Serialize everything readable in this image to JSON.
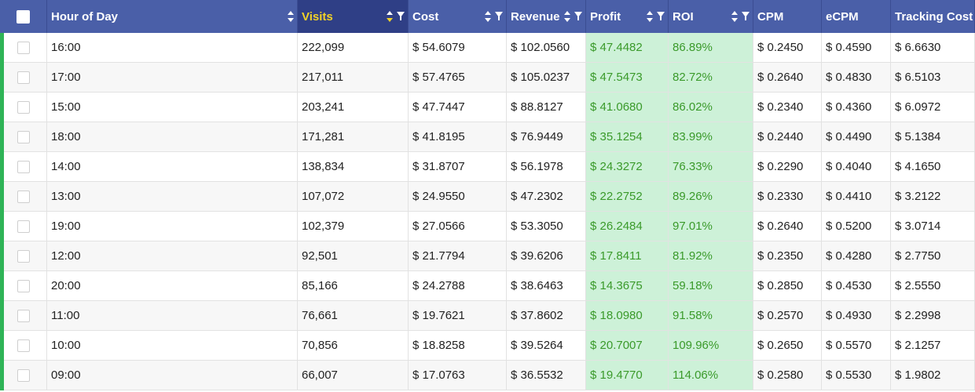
{
  "columns": [
    {
      "key": "hour",
      "label": "Hour of Day",
      "sortable": true,
      "filterable": false
    },
    {
      "key": "visits",
      "label": "Visits",
      "sortable": true,
      "filterable": true,
      "sorted": "desc"
    },
    {
      "key": "cost",
      "label": "Cost",
      "sortable": true,
      "filterable": true
    },
    {
      "key": "revenue",
      "label": "Revenue",
      "sortable": true,
      "filterable": true
    },
    {
      "key": "profit",
      "label": "Profit",
      "sortable": true,
      "filterable": true
    },
    {
      "key": "roi",
      "label": "ROI",
      "sortable": true,
      "filterable": true
    },
    {
      "key": "cpm",
      "label": "CPM",
      "sortable": false,
      "filterable": false
    },
    {
      "key": "ecpm",
      "label": "eCPM",
      "sortable": false,
      "filterable": false
    },
    {
      "key": "tracking_cost",
      "label": "Tracking Cost",
      "sortable": false,
      "filterable": false
    }
  ],
  "rows": [
    {
      "hour": "16:00",
      "visits": "222,099",
      "cost": "$ 54.6079",
      "revenue": "$ 102.0560",
      "profit": "$ 47.4482",
      "roi": "86.89%",
      "cpm": "$ 0.2450",
      "ecpm": "$ 0.4590",
      "tracking_cost": "$ 6.6630"
    },
    {
      "hour": "17:00",
      "visits": "217,011",
      "cost": "$ 57.4765",
      "revenue": "$ 105.0237",
      "profit": "$ 47.5473",
      "roi": "82.72%",
      "cpm": "$ 0.2640",
      "ecpm": "$ 0.4830",
      "tracking_cost": "$ 6.5103"
    },
    {
      "hour": "15:00",
      "visits": "203,241",
      "cost": "$ 47.7447",
      "revenue": "$ 88.8127",
      "profit": "$ 41.0680",
      "roi": "86.02%",
      "cpm": "$ 0.2340",
      "ecpm": "$ 0.4360",
      "tracking_cost": "$ 6.0972"
    },
    {
      "hour": "18:00",
      "visits": "171,281",
      "cost": "$ 41.8195",
      "revenue": "$ 76.9449",
      "profit": "$ 35.1254",
      "roi": "83.99%",
      "cpm": "$ 0.2440",
      "ecpm": "$ 0.4490",
      "tracking_cost": "$ 5.1384"
    },
    {
      "hour": "14:00",
      "visits": "138,834",
      "cost": "$ 31.8707",
      "revenue": "$ 56.1978",
      "profit": "$ 24.3272",
      "roi": "76.33%",
      "cpm": "$ 0.2290",
      "ecpm": "$ 0.4040",
      "tracking_cost": "$ 4.1650"
    },
    {
      "hour": "13:00",
      "visits": "107,072",
      "cost": "$ 24.9550",
      "revenue": "$ 47.2302",
      "profit": "$ 22.2752",
      "roi": "89.26%",
      "cpm": "$ 0.2330",
      "ecpm": "$ 0.4410",
      "tracking_cost": "$ 3.2122"
    },
    {
      "hour": "19:00",
      "visits": "102,379",
      "cost": "$ 27.0566",
      "revenue": "$ 53.3050",
      "profit": "$ 26.2484",
      "roi": "97.01%",
      "cpm": "$ 0.2640",
      "ecpm": "$ 0.5200",
      "tracking_cost": "$ 3.0714"
    },
    {
      "hour": "12:00",
      "visits": "92,501",
      "cost": "$ 21.7794",
      "revenue": "$ 39.6206",
      "profit": "$ 17.8411",
      "roi": "81.92%",
      "cpm": "$ 0.2350",
      "ecpm": "$ 0.4280",
      "tracking_cost": "$ 2.7750"
    },
    {
      "hour": "20:00",
      "visits": "85,166",
      "cost": "$ 24.2788",
      "revenue": "$ 38.6463",
      "profit": "$ 14.3675",
      "roi": "59.18%",
      "cpm": "$ 0.2850",
      "ecpm": "$ 0.4530",
      "tracking_cost": "$ 2.5550"
    },
    {
      "hour": "11:00",
      "visits": "76,661",
      "cost": "$ 19.7621",
      "revenue": "$ 37.8602",
      "profit": "$ 18.0980",
      "roi": "91.58%",
      "cpm": "$ 0.2570",
      "ecpm": "$ 0.4930",
      "tracking_cost": "$ 2.2998"
    },
    {
      "hour": "10:00",
      "visits": "70,856",
      "cost": "$ 18.8258",
      "revenue": "$ 39.5264",
      "profit": "$ 20.7007",
      "roi": "109.96%",
      "cpm": "$ 0.2650",
      "ecpm": "$ 0.5570",
      "tracking_cost": "$ 2.1257"
    },
    {
      "hour": "09:00",
      "visits": "66,007",
      "cost": "$ 17.0763",
      "revenue": "$ 36.5532",
      "profit": "$ 19.4770",
      "roi": "114.06%",
      "cpm": "$ 0.2580",
      "ecpm": "$ 0.5530",
      "tracking_cost": "$ 1.9802"
    }
  ],
  "colors": {
    "header_bg": "#4a5fa8",
    "header_active_bg": "#2f3f86",
    "sort_active": "#f2d227",
    "highlight_bg": "#cdf1d8",
    "highlight_text": "#3a9a2a",
    "row_marker": "#2fb457"
  }
}
